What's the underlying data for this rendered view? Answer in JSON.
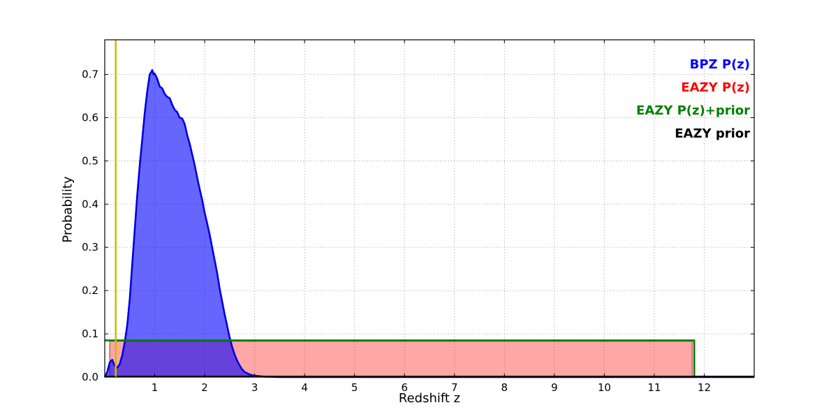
{
  "chart_data": {
    "type": "line",
    "title": "",
    "xlabel": "Redshift z",
    "ylabel": "Probability",
    "xlim": [
      0,
      13
    ],
    "ylim": [
      0,
      0.78
    ],
    "grid": true,
    "legend_position": "upper right",
    "xticks": [
      1,
      2,
      3,
      4,
      5,
      6,
      7,
      8,
      9,
      10,
      11,
      12
    ],
    "xtick_labels": [
      "1",
      "2",
      "3",
      "4",
      "5",
      "6",
      "7",
      "8",
      "9",
      "10",
      "11",
      "12"
    ],
    "yticks": [
      0.0,
      0.1,
      0.2,
      0.3,
      0.4,
      0.5,
      0.6,
      0.7
    ],
    "ytick_labels": [
      "0.0",
      "0.1",
      "0.2",
      "0.3",
      "0.4",
      "0.5",
      "0.6",
      "0.7"
    ],
    "draw_order": [
      1,
      0,
      2,
      3
    ],
    "vline": {
      "x": 0.22,
      "color": "#ccbb00"
    },
    "series": [
      {
        "name": "BPZ P(z)",
        "id": "bpz-pz",
        "color": "#0000ff",
        "stroke": "#0000e0",
        "stroke_width": 2.6,
        "fill": true,
        "fill_opacity": 0.6,
        "x": [
          0,
          0.05,
          0.1,
          0.15,
          0.2,
          0.25,
          0.3,
          0.35,
          0.4,
          0.45,
          0.5,
          0.55,
          0.6,
          0.65,
          0.7,
          0.75,
          0.8,
          0.85,
          0.9,
          0.93,
          0.95,
          0.98,
          1.0,
          1.05,
          1.1,
          1.15,
          1.2,
          1.25,
          1.3,
          1.35,
          1.4,
          1.45,
          1.5,
          1.55,
          1.6,
          1.65,
          1.7,
          1.75,
          1.8,
          1.85,
          1.9,
          1.95,
          2.0,
          2.05,
          2.1,
          2.15,
          2.2,
          2.25,
          2.3,
          2.35,
          2.4,
          2.45,
          2.5,
          2.55,
          2.6,
          2.65,
          2.7,
          2.75,
          2.8,
          2.9,
          3.0,
          3.2,
          3.5,
          4.0,
          13.0
        ],
        "y": [
          0,
          0.012,
          0.034,
          0.04,
          0.026,
          0.022,
          0.03,
          0.05,
          0.08,
          0.12,
          0.18,
          0.26,
          0.34,
          0.42,
          0.49,
          0.55,
          0.61,
          0.66,
          0.7,
          0.705,
          0.71,
          0.7,
          0.702,
          0.69,
          0.672,
          0.668,
          0.655,
          0.648,
          0.645,
          0.63,
          0.618,
          0.613,
          0.6,
          0.598,
          0.585,
          0.56,
          0.54,
          0.515,
          0.49,
          0.462,
          0.435,
          0.41,
          0.38,
          0.355,
          0.33,
          0.3,
          0.27,
          0.24,
          0.205,
          0.175,
          0.145,
          0.118,
          0.092,
          0.07,
          0.052,
          0.038,
          0.027,
          0.018,
          0.012,
          0.006,
          0.003,
          0.001,
          0,
          0,
          0
        ]
      },
      {
        "name": "EAZY P(z)",
        "id": "eazy-pz",
        "color": "#ff0000",
        "stroke": "#c06060",
        "stroke_width": 1.5,
        "fill": true,
        "fill_opacity": 0.35,
        "x": [
          0.1,
          0.1,
          11.76,
          11.76
        ],
        "y": [
          0,
          0.083,
          0.083,
          0
        ]
      },
      {
        "name": "EAZY P(z)+prior",
        "id": "eazy-pz-prior",
        "color": "#008000",
        "stroke": "#057a05",
        "stroke_width": 2.6,
        "fill": false,
        "fill_opacity": 0,
        "x": [
          0,
          11.8,
          11.8
        ],
        "y": [
          0.085,
          0.085,
          0
        ]
      },
      {
        "name": "EAZY prior",
        "id": "eazy-prior",
        "color": "#000000",
        "stroke": "#000000",
        "stroke_width": 1.5,
        "fill": false,
        "fill_opacity": 0,
        "x": [
          0,
          13
        ],
        "y": [
          0.002,
          0.002
        ]
      }
    ]
  }
}
